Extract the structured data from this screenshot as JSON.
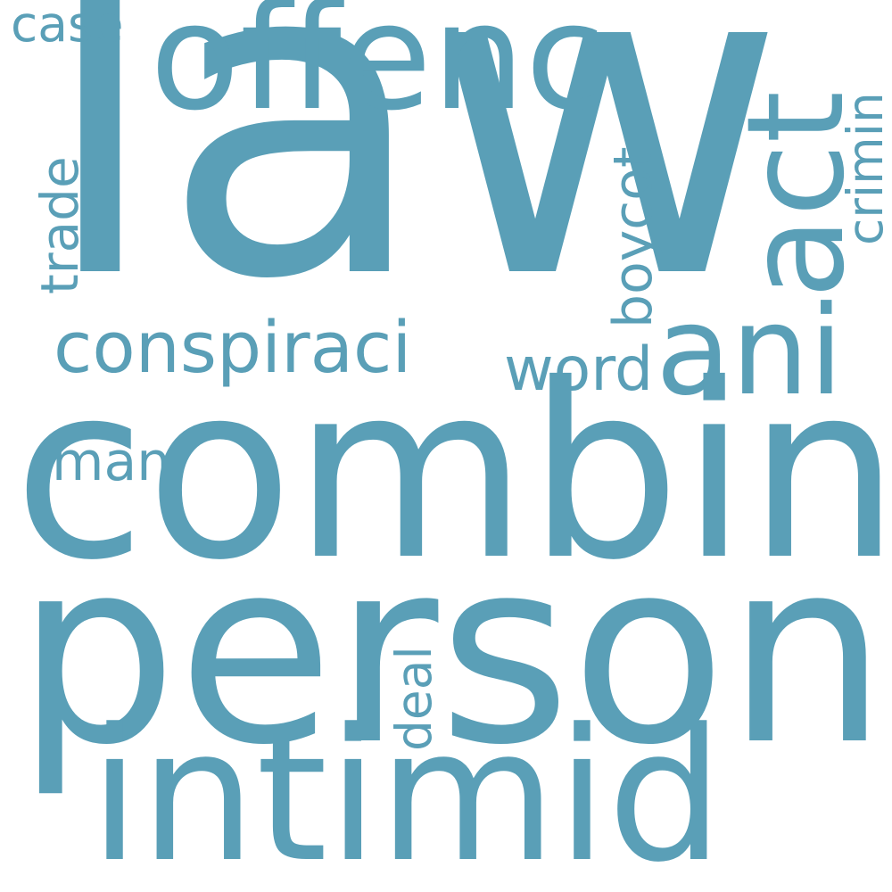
{
  "word_cloud": {
    "color": "#5a9fb7",
    "background": "#ffffff",
    "words": {
      "law": "law",
      "combin": "combin",
      "person": "person",
      "intimid": "intimid",
      "offenc": "offenc",
      "act": "act",
      "ani": "ani",
      "conspiraci": "conspiraci",
      "word": "word",
      "man": "man",
      "case": "case",
      "crimin": "crimin",
      "boycot": "boycot",
      "trade": "trade",
      "deal": "deal"
    }
  }
}
